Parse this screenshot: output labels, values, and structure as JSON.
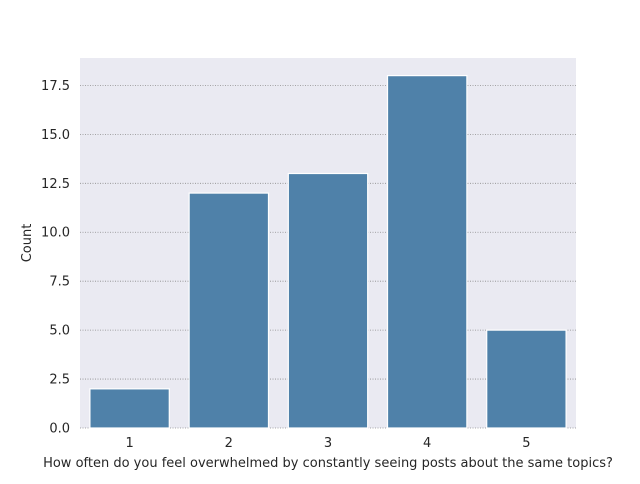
{
  "chart_data": {
    "type": "bar",
    "title": "",
    "xlabel": "How often do you feel overwhelmed by constantly seeing posts about the same topics?",
    "ylabel": "Count",
    "categories": [
      "1",
      "2",
      "3",
      "4",
      "5"
    ],
    "values": [
      2,
      12,
      13,
      18,
      5
    ],
    "ylim": [
      0,
      18.9
    ],
    "yticks": [
      0.0,
      2.5,
      5.0,
      7.5,
      10.0,
      12.5,
      15.0,
      17.5
    ],
    "ytick_labels": [
      "0.0",
      "2.5",
      "5.0",
      "7.5",
      "10.0",
      "12.5",
      "15.0",
      "17.5"
    ],
    "grid": "horizontal, dotted",
    "bar_color": "#4f81a9",
    "plot_background": "#eaeaf2",
    "grid_color": "#8c8c8c"
  }
}
